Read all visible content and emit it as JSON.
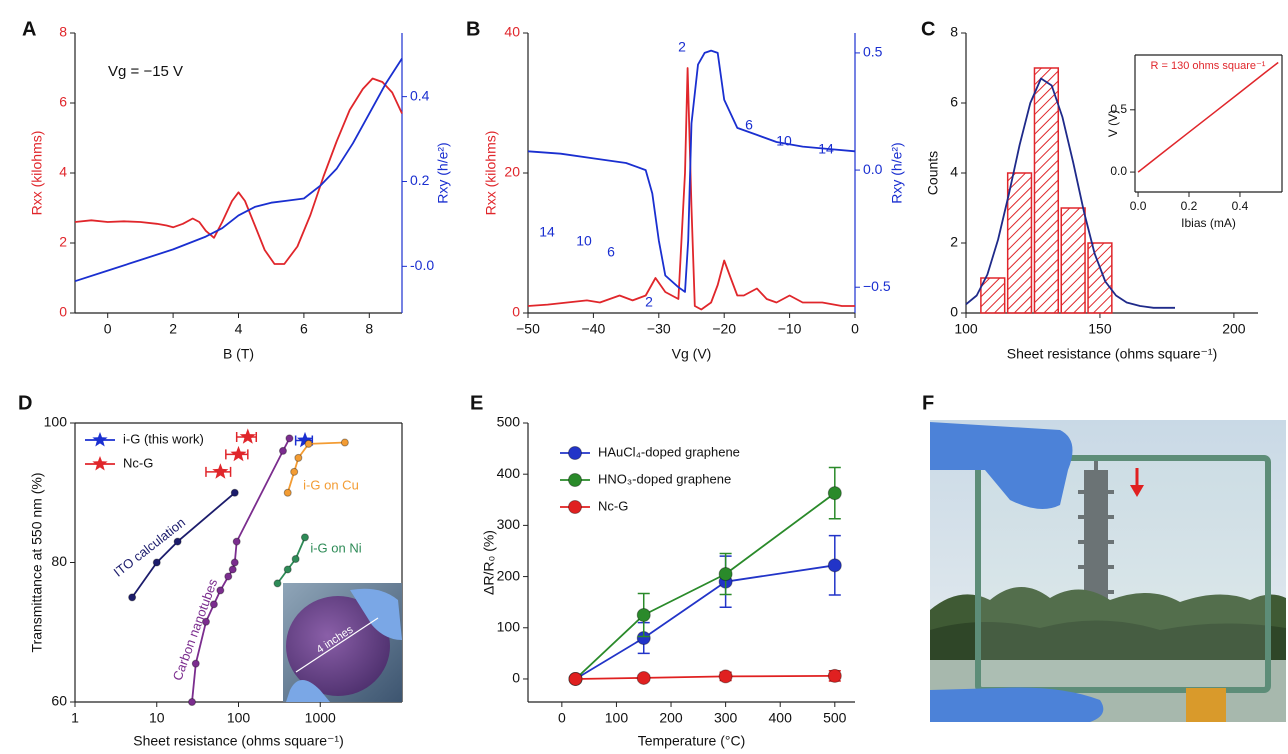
{
  "chart_data": [
    {
      "type": "line",
      "panel_label": "A",
      "xlabel": "B (T)",
      "ylabel": "Rxx (kilohms)",
      "y2label": "Rxy (h/e²)",
      "annotations": [
        "Vg = −15 V"
      ],
      "xlim": [
        -1,
        9
      ],
      "xticks": [
        0,
        2,
        4,
        6,
        8
      ],
      "ylim": [
        0,
        8
      ],
      "yticks": [
        0,
        2,
        4,
        6,
        8
      ],
      "y2lim": [
        -0.11,
        0.55
      ],
      "y2ticks": [
        {
          "value": 0,
          "label": "-0.0"
        },
        0.2,
        0.4
      ],
      "ycolor": "#e0262b",
      "y2color": "#1a2fd0",
      "series": [
        {
          "color": "#e0262b",
          "x": [
            -1,
            -0.5,
            0,
            0.5,
            1,
            1.5,
            1.8,
            2,
            2.3,
            2.6,
            2.8,
            3,
            3.25,
            3.5,
            3.8,
            4,
            4.2,
            4.5,
            4.8,
            5.1,
            5.4,
            5.8,
            6.2,
            6.6,
            7,
            7.4,
            7.8,
            8.1,
            8.4,
            8.7,
            9
          ],
          "values": [
            2.6,
            2.65,
            2.6,
            2.62,
            2.6,
            2.55,
            2.5,
            2.45,
            2.55,
            2.7,
            2.6,
            2.35,
            2.15,
            2.6,
            3.2,
            3.45,
            3.2,
            2.5,
            1.8,
            1.4,
            1.4,
            1.9,
            2.8,
            3.9,
            4.9,
            5.8,
            6.4,
            6.7,
            6.6,
            6.3,
            5.7
          ]
        },
        {
          "color": "#1a2fd0",
          "axis": "y2",
          "x": [
            -1,
            0,
            1,
            2,
            3,
            3.5,
            4,
            4.5,
            5,
            5.5,
            6,
            6.5,
            7,
            7.5,
            8,
            8.5,
            9
          ],
          "values": [
            -0.035,
            -0.01,
            0.015,
            0.04,
            0.07,
            0.09,
            0.12,
            0.14,
            0.15,
            0.155,
            0.16,
            0.19,
            0.23,
            0.29,
            0.36,
            0.43,
            0.49
          ]
        }
      ]
    },
    {
      "type": "line",
      "panel_label": "B",
      "xlabel": "Vg (V)",
      "ylabel": "Rxx (kilohms)",
      "y2label": "Rxy (h/e²)",
      "annotations": [
        "2",
        "6",
        "10",
        "14",
        "14",
        "10",
        "6",
        "2"
      ],
      "xlim": [
        -50,
        0
      ],
      "xticks": [
        {
          "value": -50,
          "label": "−50"
        },
        {
          "value": -40,
          "label": "−40"
        },
        {
          "value": -30,
          "label": "−30"
        },
        {
          "value": -20,
          "label": "−20"
        },
        {
          "value": -10,
          "label": "−10"
        },
        0
      ],
      "ylim": [
        0,
        40
      ],
      "yticks": [
        0,
        20,
        40
      ],
      "y2lim": [
        -0.61,
        0.585
      ],
      "y2ticks": [
        {
          "value": -0.5,
          "label": "−0.5"
        },
        {
          "value": 0,
          "label": "0.0"
        },
        0.5
      ],
      "ycolor": "#e0262b",
      "y2color": "#1a2fd0",
      "series": [
        {
          "color": "#e0262b",
          "x": [
            -50,
            -47,
            -44,
            -41,
            -39,
            -36,
            -34,
            -32,
            -30.5,
            -29,
            -27,
            -26,
            -25.6,
            -25,
            -24.5,
            -23.5,
            -22,
            -21,
            -20,
            -19,
            -18,
            -17,
            -15,
            -13.5,
            -12,
            -10,
            -8,
            -5,
            -2,
            0
          ],
          "values": [
            1,
            1.2,
            1.5,
            1.8,
            1.5,
            2.5,
            1.8,
            2.5,
            5,
            3,
            2,
            20,
            35,
            15,
            1,
            0.5,
            1.5,
            4,
            7.5,
            5,
            2.5,
            2.5,
            3.5,
            2,
            1.5,
            2.5,
            1.5,
            1.5,
            1,
            1
          ]
        },
        {
          "color": "#1a2fd0",
          "axis": "y2",
          "x": [
            -50,
            -45,
            -40,
            -35,
            -32,
            -31,
            -30,
            -29,
            -27,
            -26,
            -25.5,
            -25,
            -24,
            -23,
            -22,
            -21,
            -20,
            -18,
            -15,
            -12,
            -8,
            -4,
            0
          ],
          "values": [
            0.08,
            0.07,
            0.05,
            0.03,
            0,
            -0.1,
            -0.3,
            -0.45,
            -0.5,
            -0.52,
            -0.3,
            0.2,
            0.45,
            0.5,
            0.51,
            0.5,
            0.3,
            0.18,
            0.15,
            0.12,
            0.1,
            0.09,
            0.08
          ]
        }
      ]
    },
    {
      "type": "histogram",
      "panel_label": "C",
      "xlabel": "Sheet resistance (ohms square⁻¹)",
      "ylabel": "Counts",
      "bins": [
        105,
        115,
        125,
        135,
        145,
        155
      ],
      "counts": [
        1,
        4,
        7,
        3,
        2
      ],
      "color": "#e0262b",
      "xlim": [
        100,
        209
      ],
      "xticks": [
        100,
        150,
        200
      ],
      "ylim": [
        0,
        8
      ],
      "yticks": [
        0,
        2,
        4,
        6,
        8
      ],
      "series": [
        {
          "color": "#1f2a8a",
          "x": [
            100,
            104,
            108,
            112,
            116,
            120,
            124,
            128,
            132,
            136,
            140,
            144,
            148,
            152,
            156,
            160,
            165,
            170,
            178
          ],
          "values": [
            0.25,
            0.5,
            1.1,
            2.1,
            3.4,
            4.8,
            6.0,
            6.7,
            6.5,
            5.6,
            4.3,
            2.9,
            1.7,
            0.9,
            0.5,
            0.3,
            0.2,
            0.15,
            0.15
          ]
        }
      ],
      "inset": {
        "type": "line",
        "xlabel": "Ibias (mA)",
        "ylabel": "V (V)",
        "annotations": [
          "R = 130 ohms square⁻¹"
        ],
        "xlim": [
          -0.012,
          0.565
        ],
        "xticks": [
          {
            "value": 0,
            "label": "0.0"
          },
          0.2,
          0.4
        ],
        "ylim": [
          -0.16,
          0.94
        ],
        "yticks": [
          {
            "value": 0,
            "label": "0.0"
          },
          0.5
        ],
        "series": [
          {
            "color": "#e0262b",
            "x": [
              0,
              0.1,
              0.2,
              0.3,
              0.4,
              0.5,
              0.55
            ],
            "values": [
              0,
              0.16,
              0.32,
              0.48,
              0.64,
              0.8,
              0.88
            ]
          }
        ]
      }
    },
    {
      "type": "line",
      "panel_label": "D",
      "xlabel": "Sheet resistance (ohms square⁻¹)",
      "ylabel": "Transmittance at 550 nm (%)",
      "xscale": "log",
      "xlim": [
        1,
        10000
      ],
      "xticks": [
        1,
        10,
        100,
        1000
      ],
      "ylim": [
        60,
        100
      ],
      "yticks": [
        60,
        80,
        100
      ],
      "legend": "upper left",
      "series": [
        {
          "name": "i-G (this work)",
          "color": "#1a2fd0",
          "marker": "star",
          "x": [
            650
          ],
          "values": [
            97.5
          ],
          "xerr": [
            150
          ]
        },
        {
          "name": "Nc-G",
          "color": "#e0262b",
          "marker": "star",
          "x": [
            60,
            100,
            130
          ],
          "values": [
            93,
            95.5,
            98
          ],
          "xerr": [
            20,
            30,
            35
          ]
        },
        {
          "label": "ITO calculation",
          "color": "#1c1c6c",
          "marker": "circle",
          "x": [
            5,
            10,
            18,
            90
          ],
          "values": [
            75,
            80,
            83,
            90
          ]
        },
        {
          "label": "Carbon nanotubes",
          "color": "#7b2d8e",
          "marker": "circle",
          "x": [
            27,
            30,
            40,
            50,
            60,
            75,
            85,
            90,
            95,
            350,
            420
          ],
          "values": [
            60,
            65.5,
            71.5,
            74,
            76,
            78,
            79,
            80,
            83,
            96,
            97.8
          ]
        },
        {
          "label": "i-G on Cu",
          "color": "#f39c33",
          "marker": "circle",
          "x": [
            400,
            480,
            540,
            720,
            2000
          ],
          "values": [
            90,
            93,
            95,
            97,
            97.2
          ]
        },
        {
          "label": "i-G on Ni",
          "color": "#2e8b57",
          "marker": "circle",
          "x": [
            300,
            400,
            500,
            650
          ],
          "values": [
            77,
            79,
            80.5,
            83.6
          ]
        }
      ],
      "inset_photo": {
        "annotation": "4 inches"
      }
    },
    {
      "type": "line",
      "panel_label": "E",
      "xlabel": "Temperature (°C)",
      "ylabel": "ΔR/R₀ (%)",
      "xlim": [
        -62,
        537
      ],
      "xticks": [
        0,
        100,
        200,
        300,
        400,
        500
      ],
      "ylim": [
        -45,
        500
      ],
      "yticks": [
        0,
        100,
        200,
        300,
        400,
        500
      ],
      "legend": "upper left",
      "series": [
        {
          "name": "HAuCl₄-doped graphene",
          "color": "#2234c8",
          "marker": "circle",
          "x": [
            25,
            150,
            300,
            500
          ],
          "values": [
            0,
            80,
            190,
            222
          ],
          "err": [
            0,
            30,
            50,
            58
          ]
        },
        {
          "name": "HNO₃-doped graphene",
          "color": "#2a8a2a",
          "marker": "circle",
          "x": [
            25,
            150,
            300,
            500
          ],
          "values": [
            0,
            125,
            205,
            363
          ],
          "err": [
            0,
            42,
            40,
            50
          ]
        },
        {
          "name": "Nc-G",
          "color": "#e02020",
          "marker": "circle",
          "x": [
            25,
            150,
            300,
            500
          ],
          "values": [
            0,
            2,
            5,
            6
          ],
          "err": [
            0,
            5,
            8,
            10
          ]
        }
      ]
    }
  ],
  "photo": {
    "panel_label": "F"
  }
}
